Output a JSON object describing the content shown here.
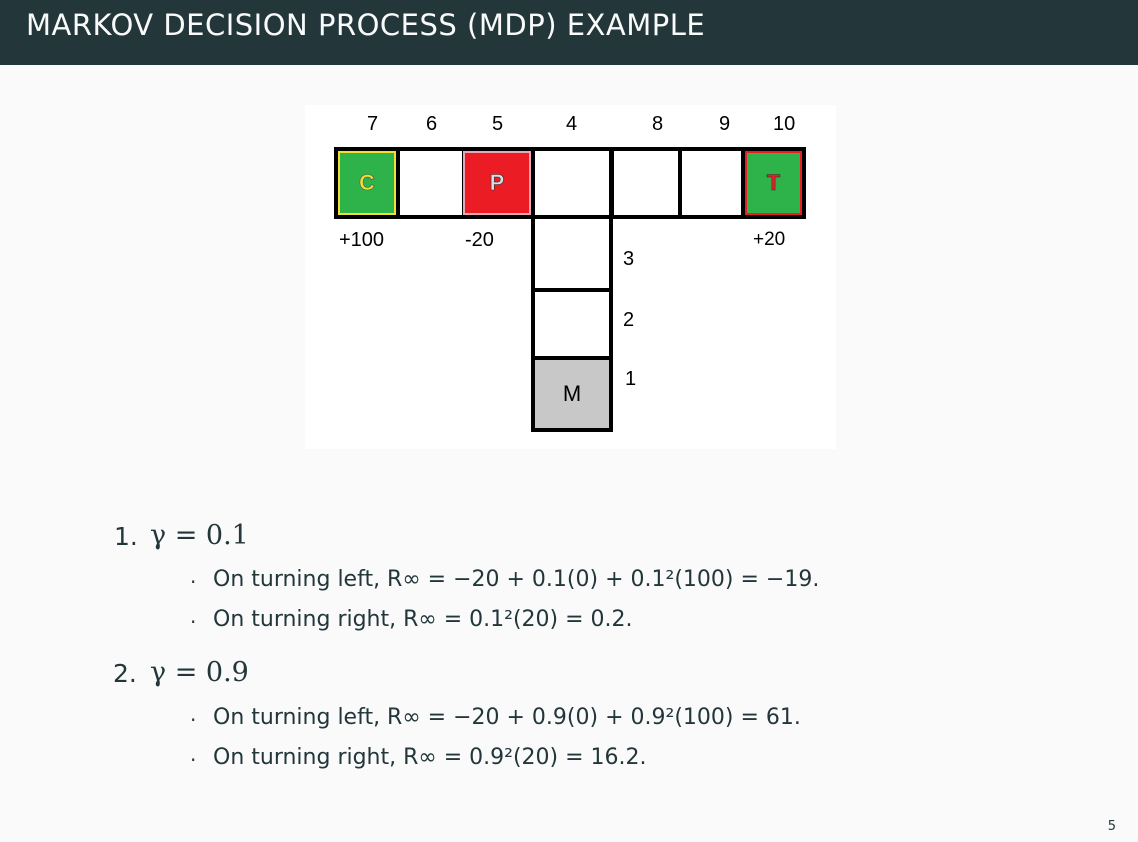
{
  "title": "MARKOV DECISION PROCESS (MDP) EXAMPLE",
  "figure": {
    "top_numbers": [
      "7",
      "6",
      "5",
      "4",
      "8",
      "9",
      "10"
    ],
    "cells": {
      "c": "C",
      "p": "P",
      "t": "T",
      "m": "M"
    },
    "rewards": {
      "c": "+100",
      "p": "-20",
      "t": "+20"
    },
    "side_numbers": [
      "3",
      "2",
      "1"
    ],
    "colors": {
      "green": "#2eb24a",
      "red": "#ec1c24",
      "gray": "#c8c8c8",
      "yellow_outline": "#f0e130"
    }
  },
  "list": [
    {
      "number": "1.",
      "gamma": "γ = 0.1",
      "bullets": [
        "On turning left, R∞ = −20 + 0.1(0) + 0.1²(100) = −19.",
        "On turning right, R∞ = 0.1²(20) = 0.2."
      ]
    },
    {
      "number": "2.",
      "gamma": "γ = 0.9",
      "bullets": [
        "On turning left, R∞ = −20 + 0.9(0) + 0.9²(100) = 61.",
        "On turning right, R∞ = 0.9²(20) = 16.2."
      ]
    }
  ],
  "page_number": "5",
  "theme": {
    "title_bg": "#23373b",
    "text": "#23373b",
    "page_bg": "#fafafa"
  }
}
